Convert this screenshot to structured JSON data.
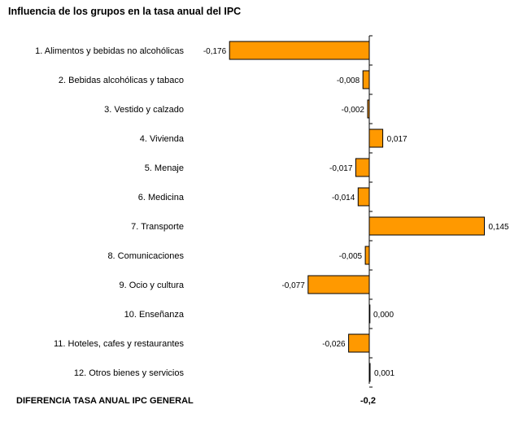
{
  "title": "Influencia de los grupos en la tasa anual del IPC",
  "footer": {
    "label": "DIFERENCIA TASA ANUAL IPC GENERAL",
    "value": "-0,2"
  },
  "colors": {
    "bar_fill": "#FF9900",
    "bar_stroke": "#000000"
  },
  "chart_data": {
    "type": "bar",
    "orientation": "horizontal",
    "title": "Influencia de los grupos en la tasa anual del IPC",
    "categories": [
      "1. Alimentos y bebidas no alcohólicas",
      "2. Bebidas alcohólicas y tabaco",
      "3. Vestido y calzado",
      "4. Vivienda",
      "5. Menaje",
      "6. Medicina",
      "7. Transporte",
      "8. Comunicaciones",
      "9. Ocio y cultura",
      "10. Enseñanza",
      "11. Hoteles, cafes y restaurantes",
      "12. Otros bienes y servicios"
    ],
    "values": [
      -0.176,
      -0.008,
      -0.002,
      0.017,
      -0.017,
      -0.014,
      0.145,
      -0.005,
      -0.077,
      0.0,
      -0.026,
      0.001
    ],
    "value_labels": [
      "-0,176",
      "-0,008",
      "-0,002",
      "0,017",
      "-0,017",
      "-0,014",
      "0,145",
      "-0,005",
      "-0,077",
      "0,000",
      "-0,026",
      "0,001"
    ],
    "xlim": [
      -0.18,
      0.15
    ],
    "grid": false,
    "legend": "none"
  }
}
